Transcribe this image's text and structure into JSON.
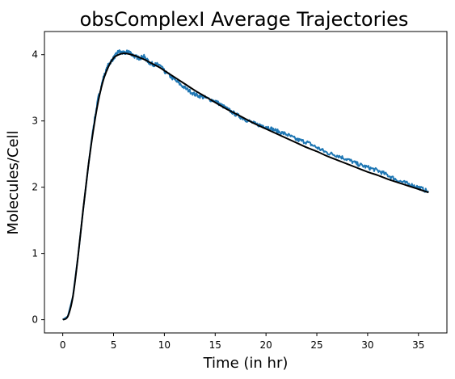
{
  "chart_data": {
    "type": "line",
    "title": "obsComplexI Average Trajectories",
    "xlabel": "Time (in hr)",
    "ylabel": "Molecules/Cell",
    "xlim": [
      -1.8,
      37.8
    ],
    "ylim": [
      -0.2,
      4.35
    ],
    "xticks": [
      0,
      5,
      10,
      15,
      20,
      25,
      30,
      35
    ],
    "yticks": [
      0,
      1,
      2,
      3,
      4
    ],
    "grid": false,
    "legend": "none",
    "series": [
      {
        "color": "#1f77b4",
        "style": "noisy",
        "x": [
          0,
          0.5,
          1,
          1.5,
          2,
          2.5,
          3,
          3.5,
          4,
          4.5,
          5,
          5.5,
          6,
          6.5,
          7,
          7.5,
          8,
          8.5,
          9,
          9.5,
          10,
          11,
          12,
          13,
          14,
          15,
          16,
          17,
          18,
          19,
          20,
          21,
          22,
          23,
          24,
          25,
          26,
          27,
          28,
          29,
          30,
          31,
          32,
          33,
          34,
          35,
          36
        ],
        "y": [
          0,
          0.05,
          0.35,
          0.95,
          1.65,
          2.3,
          2.9,
          3.35,
          3.65,
          3.85,
          3.95,
          4.05,
          4.02,
          4.05,
          3.98,
          3.95,
          3.97,
          3.88,
          3.85,
          3.85,
          3.75,
          3.62,
          3.5,
          3.4,
          3.35,
          3.3,
          3.2,
          3.1,
          3.02,
          2.95,
          2.92,
          2.85,
          2.8,
          2.72,
          2.68,
          2.6,
          2.52,
          2.48,
          2.42,
          2.35,
          2.3,
          2.25,
          2.18,
          2.1,
          2.05,
          2.0,
          1.93
        ]
      },
      {
        "color": "#000000",
        "style": "smooth",
        "x": [
          0,
          0.5,
          1,
          1.5,
          2,
          2.5,
          3,
          3.5,
          4,
          4.5,
          5,
          5.5,
          6,
          6.5,
          7,
          7.5,
          8,
          8.5,
          9,
          9.5,
          10,
          11,
          12,
          13,
          14,
          15,
          16,
          17,
          18,
          19,
          20,
          21,
          22,
          23,
          24,
          25,
          26,
          27,
          28,
          29,
          30,
          31,
          32,
          33,
          34,
          35,
          36
        ],
        "y": [
          0,
          0.05,
          0.35,
          0.95,
          1.65,
          2.3,
          2.85,
          3.3,
          3.62,
          3.82,
          3.95,
          4.0,
          4.02,
          4.01,
          3.99,
          3.96,
          3.93,
          3.89,
          3.85,
          3.81,
          3.76,
          3.66,
          3.56,
          3.46,
          3.37,
          3.28,
          3.19,
          3.11,
          3.03,
          2.95,
          2.88,
          2.81,
          2.74,
          2.67,
          2.6,
          2.54,
          2.47,
          2.41,
          2.35,
          2.29,
          2.23,
          2.18,
          2.12,
          2.07,
          2.02,
          1.97,
          1.92
        ]
      }
    ]
  }
}
